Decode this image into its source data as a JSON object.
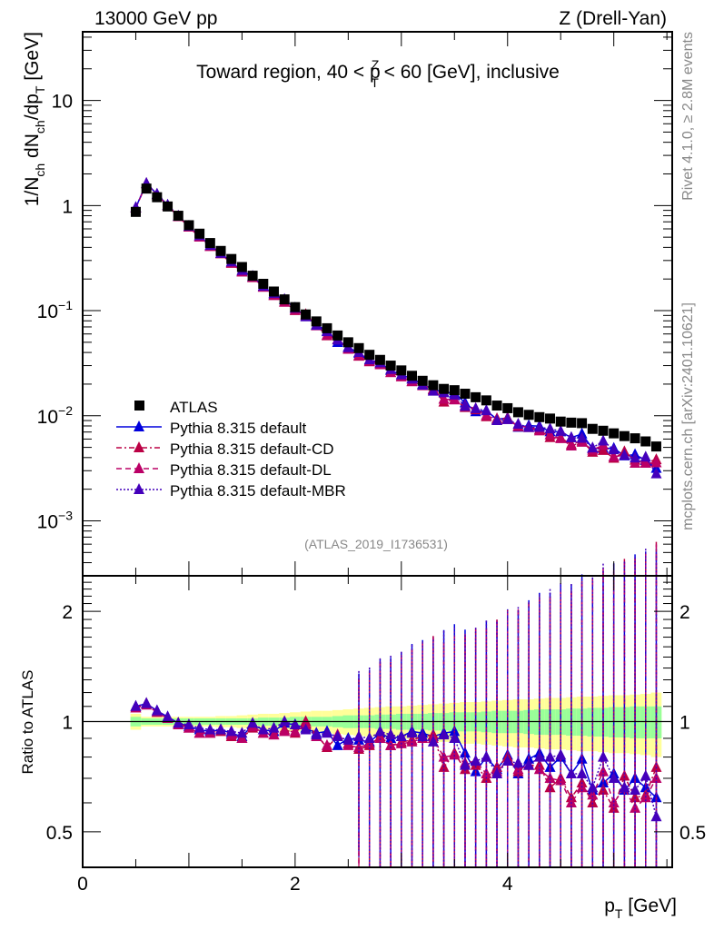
{
  "chart_data": {
    "type": "scatter",
    "header_left": "13000 GeV pp",
    "header_right": "Z (Drell-Yan)",
    "title": "Toward region, 40 < p_T^Z < 60 [GeV], inclusive",
    "title_parts": {
      "pre": "Toward region, 40 < p",
      "sup": "Z",
      "sub": "T",
      "post": " < 60 [GeV], inclusive"
    },
    "ylabel": "1/N_ch dN_ch/dp_T [GeV]",
    "ylabel_parts": {
      "a": "1/N",
      "a_sub": "ch",
      "b": " dN",
      "b_sub": "ch",
      "c": "/dp",
      "c_sub": "T",
      "d": " [GeV]"
    },
    "ratio_ylabel": "Ratio to ATLAS",
    "xlabel": "p_T [GeV]",
    "xlabel_parts": {
      "a": "p",
      "a_sub": "T",
      "b": " [GeV]"
    },
    "xlim": [
      0,
      5.55
    ],
    "ylim": [
      0.0003,
      45
    ],
    "yscale": "log",
    "ratio_ylim": [
      0.4,
      2.5
    ],
    "ratio_yscale": "log",
    "x_ticks": [
      0,
      2,
      4
    ],
    "y_ticks": [
      {
        "v": 10,
        "base": "10",
        "exp": ""
      },
      {
        "v": 1,
        "base": "1",
        "exp": ""
      },
      {
        "v": 0.1,
        "base": "10",
        "exp": "−1"
      },
      {
        "v": 0.01,
        "base": "10",
        "exp": "−2"
      },
      {
        "v": 0.001,
        "base": "10",
        "exp": "−3"
      }
    ],
    "ratio_y_ticks": [
      2,
      1,
      0.5
    ],
    "ratio_y_tick_labels": [
      "2",
      "1",
      "0.5"
    ],
    "side_text_top": "Rivet 4.1.0, ≥ 2.8M events",
    "side_text_bottom": "mcplots.cern.ch [arXiv:2401.10621]",
    "analysis_id": "(ATLAS_2019_I1736531)",
    "legend_position": "lower-left",
    "x": [
      0.5,
      0.6,
      0.7,
      0.8,
      0.9,
      1.0,
      1.1,
      1.2,
      1.3,
      1.4,
      1.5,
      1.6,
      1.7,
      1.8,
      1.9,
      2.0,
      2.1,
      2.2,
      2.3,
      2.4,
      2.5,
      2.6,
      2.7,
      2.8,
      2.9,
      3.0,
      3.1,
      3.2,
      3.3,
      3.4,
      3.5,
      3.6,
      3.7,
      3.8,
      3.9,
      4.0,
      4.1,
      4.2,
      4.3,
      4.4,
      4.5,
      4.6,
      4.7,
      4.8,
      4.9,
      5.0,
      5.1,
      5.2,
      5.3,
      5.4
    ],
    "series": [
      {
        "name": "ATLAS",
        "color": "#000000",
        "marker": "square",
        "line": "none",
        "values": [
          0.87,
          1.45,
          1.2,
          0.98,
          0.8,
          0.65,
          0.54,
          0.44,
          0.37,
          0.31,
          0.26,
          0.215,
          0.18,
          0.152,
          0.128,
          0.108,
          0.092,
          0.079,
          0.068,
          0.058,
          0.05,
          0.044,
          0.038,
          0.034,
          0.03,
          0.027,
          0.024,
          0.0215,
          0.0195,
          0.018,
          0.0175,
          0.0162,
          0.015,
          0.014,
          0.0125,
          0.0118,
          0.0108,
          0.0102,
          0.0097,
          0.0094,
          0.0088,
          0.0086,
          0.0085,
          0.0075,
          0.0072,
          0.0068,
          0.0064,
          0.0061,
          0.0057,
          0.0051
        ]
      },
      {
        "name": "Pythia 8.315 default",
        "color": "#0000dd",
        "marker": "triangle",
        "line": "solid",
        "ratio": [
          1.1,
          1.12,
          1.07,
          1.03,
          0.99,
          0.97,
          0.95,
          0.94,
          0.95,
          0.93,
          0.91,
          0.98,
          0.95,
          0.94,
          0.99,
          0.98,
          0.96,
          0.93,
          0.94,
          0.86,
          0.9,
          0.89,
          0.88,
          0.93,
          0.9,
          0.91,
          0.94,
          0.93,
          0.91,
          0.93,
          0.94,
          0.82,
          0.73,
          0.8,
          0.74,
          0.81,
          0.72,
          0.79,
          0.82,
          0.75,
          0.8,
          0.72,
          0.79,
          0.65,
          0.68,
          0.72,
          0.65,
          0.7,
          0.66,
          0.62
        ]
      },
      {
        "name": "Pythia 8.315 default-CD",
        "color": "#bb0044",
        "marker": "triangle",
        "line": "dashdot",
        "ratio": [
          1.09,
          1.12,
          1.06,
          1.02,
          0.99,
          0.96,
          0.93,
          0.93,
          0.94,
          0.91,
          0.9,
          0.96,
          0.93,
          0.92,
          0.95,
          0.93,
          1.0,
          0.92,
          0.85,
          0.91,
          0.87,
          0.84,
          0.86,
          0.91,
          0.86,
          0.88,
          0.89,
          0.91,
          0.92,
          0.75,
          0.82,
          0.74,
          0.76,
          0.7,
          0.75,
          0.8,
          0.73,
          0.76,
          0.76,
          0.66,
          0.7,
          0.62,
          0.68,
          0.6,
          0.65,
          0.58,
          0.71,
          0.62,
          0.63,
          0.75
        ]
      },
      {
        "name": "Pythia 8.315 default-DL",
        "color": "#bb0066",
        "marker": "triangle",
        "line": "dashed",
        "ratio": [
          1.09,
          1.11,
          1.06,
          1.02,
          0.98,
          0.96,
          0.93,
          0.93,
          0.95,
          0.92,
          0.9,
          0.97,
          0.93,
          0.92,
          0.94,
          0.94,
          0.98,
          0.91,
          0.86,
          0.92,
          0.86,
          0.85,
          0.87,
          0.9,
          0.86,
          0.87,
          0.88,
          0.9,
          0.9,
          0.8,
          0.81,
          0.77,
          0.78,
          0.72,
          0.73,
          0.78,
          0.74,
          0.76,
          0.74,
          0.7,
          0.69,
          0.6,
          0.66,
          0.63,
          0.73,
          0.6,
          0.66,
          0.58,
          0.62,
          0.7
        ]
      },
      {
        "name": "Pythia 8.315 default-MBR",
        "color": "#4400bb",
        "marker": "triangle",
        "line": "dotted",
        "ratio": [
          1.1,
          1.12,
          1.07,
          1.03,
          0.99,
          0.98,
          0.96,
          0.95,
          0.95,
          0.94,
          0.93,
          0.99,
          0.95,
          0.96,
          1.0,
          0.98,
          0.95,
          0.92,
          0.93,
          0.91,
          0.89,
          0.91,
          0.9,
          0.94,
          0.92,
          0.91,
          0.93,
          0.91,
          0.88,
          0.92,
          0.9,
          0.76,
          0.78,
          0.8,
          0.72,
          0.78,
          0.77,
          0.76,
          0.8,
          0.8,
          0.81,
          0.72,
          0.72,
          0.66,
          0.8,
          0.7,
          0.66,
          0.65,
          0.71,
          0.55
        ]
      }
    ],
    "band": {
      "inner_color": "#99ff99",
      "outer_color": "#ffff99",
      "inner_rel": [
        0.03,
        0.02,
        0.02,
        0.02,
        0.02,
        0.02,
        0.02,
        0.02,
        0.02,
        0.02,
        0.02,
        0.02,
        0.025,
        0.025,
        0.025,
        0.03,
        0.03,
        0.03,
        0.03,
        0.035,
        0.04,
        0.04,
        0.04,
        0.045,
        0.045,
        0.05,
        0.05,
        0.05,
        0.055,
        0.055,
        0.06,
        0.06,
        0.06,
        0.065,
        0.07,
        0.07,
        0.07,
        0.075,
        0.08,
        0.08,
        0.08,
        0.085,
        0.085,
        0.09,
        0.09,
        0.095,
        0.095,
        0.1,
        0.1,
        0.1
      ],
      "outer_rel": [
        0.05,
        0.03,
        0.03,
        0.03,
        0.03,
        0.03,
        0.03,
        0.03,
        0.035,
        0.035,
        0.04,
        0.045,
        0.05,
        0.05,
        0.055,
        0.06,
        0.065,
        0.07,
        0.07,
        0.075,
        0.08,
        0.085,
        0.09,
        0.095,
        0.1,
        0.1,
        0.105,
        0.11,
        0.115,
        0.12,
        0.125,
        0.13,
        0.13,
        0.135,
        0.14,
        0.145,
        0.15,
        0.15,
        0.155,
        0.16,
        0.16,
        0.165,
        0.17,
        0.17,
        0.175,
        0.18,
        0.18,
        0.185,
        0.19,
        0.2
      ]
    }
  }
}
